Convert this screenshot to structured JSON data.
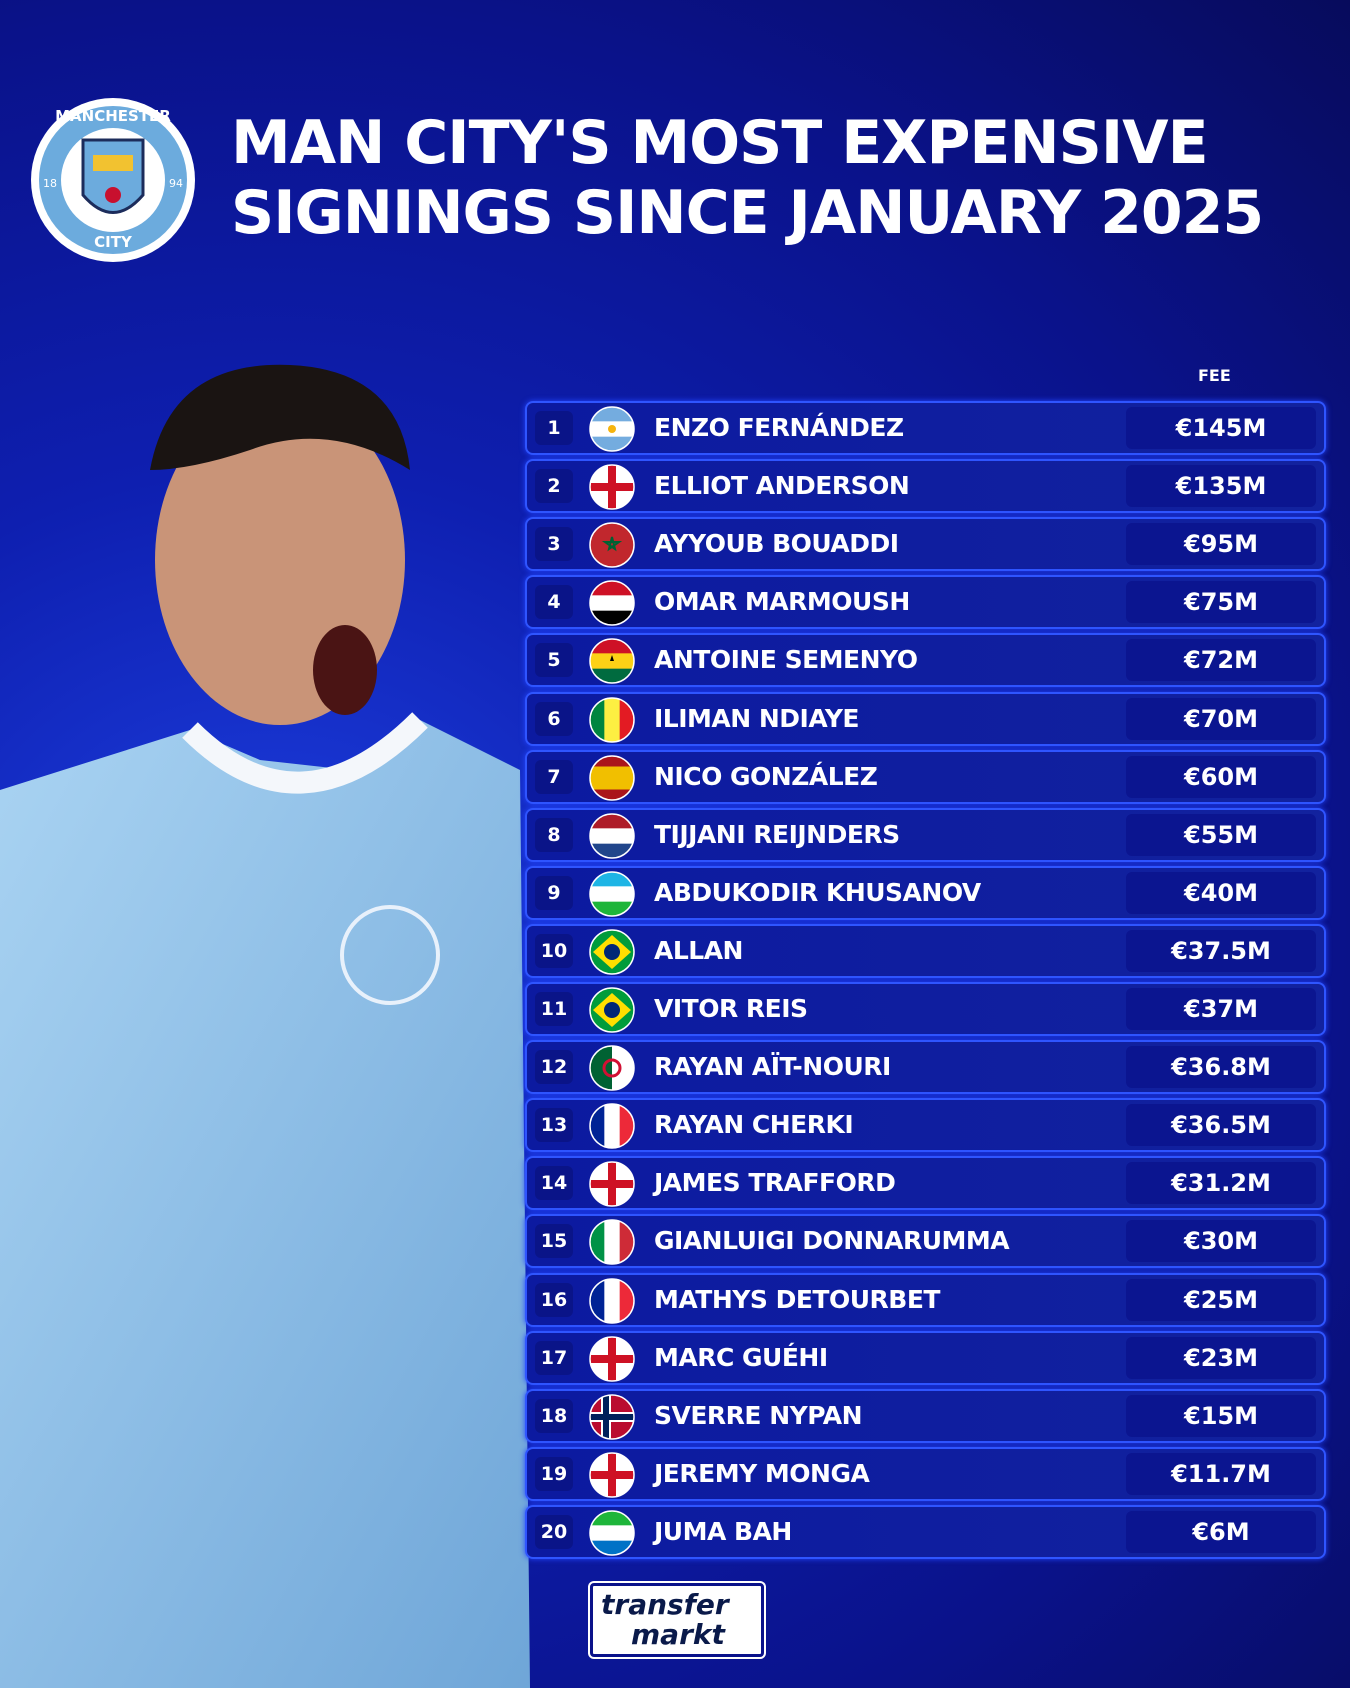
{
  "header": {
    "title_lines": [
      "MAN CITY'S MOST EXPENSIVE",
      "SIGNINGS SINCE JANUARY 2025"
    ]
  },
  "badge": {
    "top": "MANCHESTER",
    "bottom": "CITY",
    "left": "18",
    "right": "94"
  },
  "table": {
    "fee_header": "FEE",
    "rows": [
      [
        "1",
        "ENZO FERNÁNDEZ",
        "€145M"
      ],
      [
        "2",
        "ELLIOT ANDERSON",
        "€135M"
      ],
      [
        "3",
        "AYYOUB BOUADDI",
        "€95M"
      ],
      [
        "4",
        "OMAR MARMOUSH",
        "€75M"
      ],
      [
        "5",
        "ANTOINE SEMENYO",
        "€72M"
      ],
      [
        "6",
        "ILIMAN NDIAYE",
        "€70M"
      ],
      [
        "7",
        "NICO GONZÁLEZ",
        "€60M"
      ],
      [
        "8",
        "TIJJANI REIJNDERS",
        "€55M"
      ],
      [
        "9",
        "ABDUKODIR KHUSANOV",
        "€40M"
      ],
      [
        "10",
        "ALLAN",
        "€37.5M"
      ],
      [
        "11",
        "VITOR REIS",
        "€37M"
      ],
      [
        "12",
        "RAYAN AÏT-NOURI",
        "€36.8M"
      ],
      [
        "13",
        "RAYAN CHERKI",
        "€36.5M"
      ],
      [
        "14",
        "JAMES TRAFFORD",
        "€31.2M"
      ],
      [
        "15",
        "GIANLUIGI DONNARUMMA",
        "€30M"
      ],
      [
        "16",
        "MATHYS DETOURBET",
        "€25M"
      ],
      [
        "17",
        "MARC GUÉHI",
        "€23M"
      ],
      [
        "18",
        "SVERRE NYPAN",
        "€15M"
      ],
      [
        "19",
        "JEREMY MONGA",
        "€11.7M"
      ],
      [
        "20",
        "JUMA BAH",
        "€6M"
      ]
    ]
  },
  "footer": {
    "logo_lines": [
      "transfer",
      "markt"
    ]
  }
}
